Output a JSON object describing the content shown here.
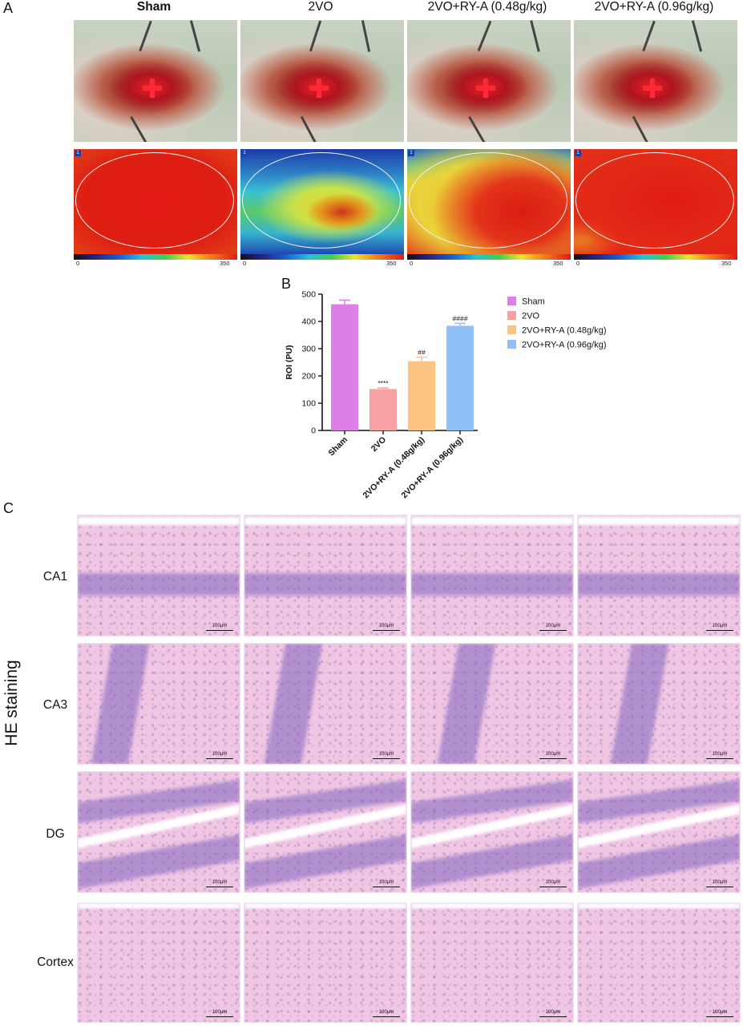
{
  "panels": {
    "a": "A",
    "b": "B",
    "c": "C"
  },
  "groups": [
    "Sham",
    "2VO",
    "2VO+RY-A (0.48g/kg)",
    "2VO+RY-A (0.96g/kg)"
  ],
  "flux_scale": {
    "min": "0",
    "max": "350",
    "roi_tag": "1"
  },
  "colors": {
    "sham": "#de7ee8",
    "2vo": "#f7a1a4",
    "low": "#fbc482",
    "high": "#8fc0f7"
  },
  "chart_data": {
    "type": "bar",
    "ylabel": "ROI (PU)",
    "ylim": [
      0,
      500
    ],
    "yticks": [
      "0",
      "100",
      "200",
      "300",
      "400",
      "500"
    ],
    "categories": [
      "Sham",
      "2VO",
      "2VO+RY-A (0.48g/kg)",
      "2VO+RY-A (0.96g/kg)"
    ],
    "values": [
      463,
      152,
      254,
      384
    ],
    "errors": [
      15,
      4,
      15,
      9
    ],
    "annotations": [
      "",
      "****",
      "##",
      "####"
    ],
    "legend": [
      "Sham",
      "2VO",
      "2VO+RY-A (0.48g/kg)",
      "2VO+RY-A (0.96g/kg)"
    ],
    "legend_position": "right"
  },
  "histology": {
    "side_label": "HE staining",
    "rows": [
      "CA1",
      "CA3",
      "DG",
      "Cortex"
    ],
    "scale_bar": "100μm"
  }
}
